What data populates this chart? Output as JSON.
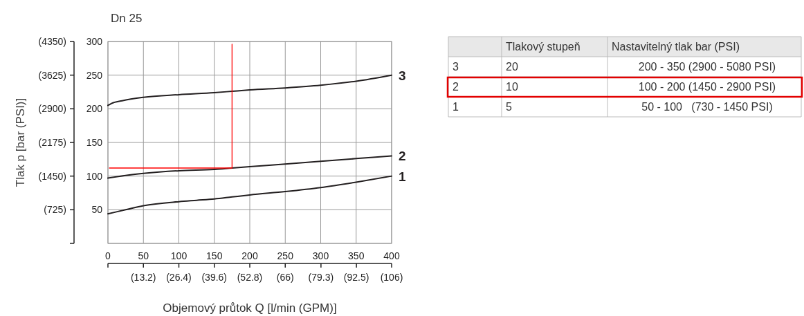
{
  "chart_data": [
    {
      "type": "line",
      "title": "Dn 25",
      "xlabel": "Objemový průtok Q [l/min (GPM)]",
      "y2label": "Tlak p [bar (PSI)]",
      "xlim": [
        0,
        400
      ],
      "xticks": [
        0,
        50,
        100,
        150,
        200,
        250,
        300,
        350,
        400
      ],
      "x2lim": [
        0,
        105.6
      ],
      "x2ticks": [
        {
          "value": 0,
          "label": null
        },
        {
          "value": 13.2,
          "label": "(13.2)"
        },
        {
          "value": 26.4,
          "label": "(26.4)"
        },
        {
          "value": 39.6,
          "label": "(39.6)"
        },
        {
          "value": 52.8,
          "label": "(52.8)"
        },
        {
          "value": 66,
          "label": "(66)"
        },
        {
          "value": 79.3,
          "label": "(79.3)"
        },
        {
          "value": 92.5,
          "label": "(92.5)"
        },
        {
          "value": 105.6,
          "label": "(106)"
        }
      ],
      "ylim": [
        0,
        300
      ],
      "yticks": [
        {
          "value": 0,
          "label": null
        },
        50,
        100,
        150,
        200,
        250,
        300
      ],
      "y2lim": [
        0,
        4350
      ],
      "y2ticks": [
        {
          "value": 0,
          "label": null
        },
        {
          "value": 725,
          "label": "(725)"
        },
        {
          "value": 1450,
          "label": "(1450)"
        },
        {
          "value": 2175,
          "label": "(2175)"
        },
        {
          "value": 2900,
          "label": "(2900)"
        },
        {
          "value": 3625,
          "label": "(3625)"
        },
        {
          "value": 4350,
          "label": "(4350)"
        }
      ],
      "grid": true,
      "legend": false,
      "marker": "none",
      "line_style": "solid",
      "series": [
        {
          "name": "3",
          "color": "#231f20",
          "x": [
            0,
            5,
            20,
            50,
            100,
            150,
            175,
            200,
            250,
            300,
            350,
            400
          ],
          "values": [
            205,
            208,
            212,
            217,
            221,
            224,
            226,
            228,
            231,
            235,
            241,
            250
          ]
        },
        {
          "name": "2",
          "color": "#231f20",
          "x": [
            0,
            25,
            50,
            100,
            150,
            175,
            200,
            250,
            300,
            350,
            400
          ],
          "values": [
            97,
            101,
            104,
            108,
            110,
            112,
            114,
            118,
            122,
            126,
            130
          ]
        },
        {
          "name": "1",
          "color": "#231f20",
          "x": [
            0,
            25,
            50,
            100,
            125,
            150,
            175,
            200,
            250,
            300,
            350,
            400
          ],
          "values": [
            44,
            50,
            56,
            62,
            64,
            66,
            69,
            72,
            77,
            83,
            91,
            100
          ]
        },
        {
          "color": "#ff0000",
          "x": [
            2,
            175,
            175
          ],
          "values": [
            112,
            112,
            296
          ]
        }
      ]
    },
    {
      "type": "other",
      "categories": [
        "Tlakový stupeň",
        "Nastavitelný tlak bar (PSI)"
      ],
      "y_categories": [
        "3",
        "2",
        "1"
      ],
      "cell_labels": [
        [
          "20",
          "200 - 350 (2900 - 5080 PSI)"
        ],
        [
          "10",
          "100 - 200 (1450 - 2900 PSI)"
        ],
        [
          "5",
          "50 - 100   (730 - 1450 PSI)"
        ]
      ]
    }
  ]
}
